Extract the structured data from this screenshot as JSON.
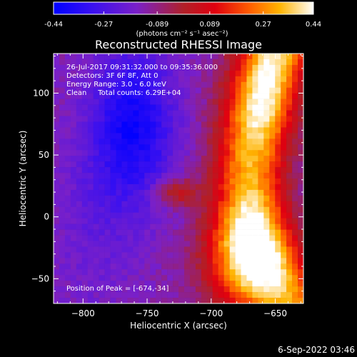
{
  "colorbar": {
    "ticks": [
      "-0.44",
      "-0.27",
      "-0.089",
      "0.089",
      "0.27",
      "0.44"
    ],
    "values": [
      -0.44,
      -0.27,
      -0.089,
      0.089,
      0.27,
      0.44
    ],
    "min": -0.44,
    "max": 0.44,
    "units_label": "(photons cm⁻² s⁻¹ asec⁻²)"
  },
  "chart_data": {
    "type": "heatmap",
    "title": "Reconstructed RHESSI Image",
    "xlabel": "Heliocentric X (arcsec)",
    "ylabel": "Heliocentric Y (arcsec)",
    "xlim": [
      -823,
      -628
    ],
    "ylim": [
      -70,
      132
    ],
    "xticks": [
      -800,
      -750,
      -700,
      -650
    ],
    "yticks": [
      -50,
      0,
      50,
      100
    ],
    "xtick_labels": [
      "−800",
      "−750",
      "−700",
      "−650"
    ],
    "ytick_labels": [
      "−50",
      "0",
      "50",
      "100"
    ],
    "colormap": "RHESSI color table (blue → purple → red → orange → yellow → white)",
    "value_range": [
      -0.44,
      0.44
    ],
    "annotations": [
      "26-Jul-2017 09:31:32.000 to 09:35:36.000",
      "Detectors: 3F 6F 8F, Att 0",
      "Energy Range: 3.0 - 6.0 keV",
      "Clean     Total counts: 6.29E+04"
    ],
    "peak_label": "Position of Peak = [-674,-34]",
    "peak": {
      "x": -674,
      "y": -34
    },
    "regions": [
      {
        "feature": "positive bright arc (peak)",
        "x_range": [
          -700,
          -628
        ],
        "y_range": [
          -70,
          132
        ],
        "level": "high"
      },
      {
        "feature": "negative blue lobe",
        "x_range": [
          -785,
          -710
        ],
        "y_range": [
          20,
          120
        ],
        "level": "low"
      },
      {
        "feature": "positive blob",
        "x_range": [
          -745,
          -710
        ],
        "y_range": [
          10,
          35
        ],
        "level": "medium"
      }
    ]
  },
  "footer": {
    "date": "6-Sep-2022 03:46"
  }
}
